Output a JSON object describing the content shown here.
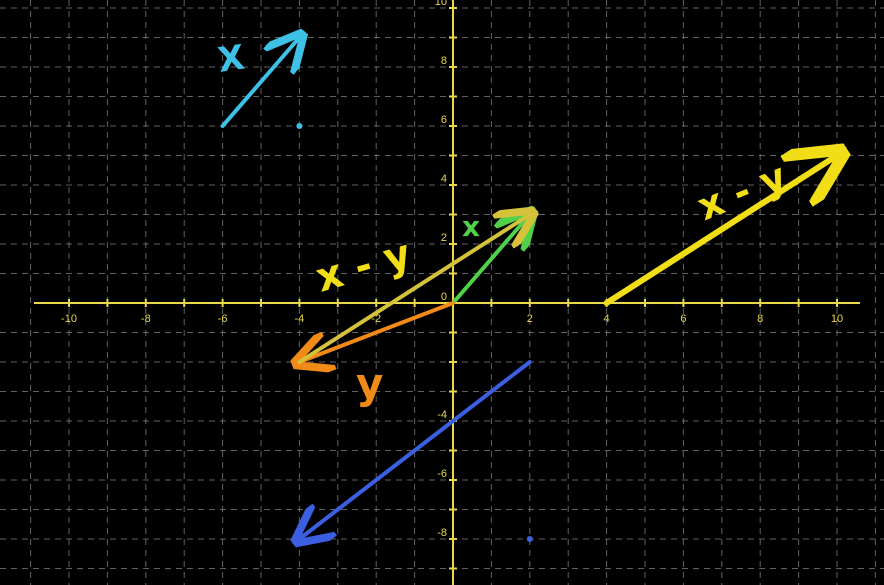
{
  "canvas": {
    "background": "#000000"
  },
  "grid": {
    "x_range": [
      -10,
      10
    ],
    "y_range": [
      -8,
      10
    ],
    "step": 1,
    "dashed": true,
    "grid_color": "#8a8a8a",
    "axis_color": "#e8d84a"
  },
  "x_tick_labels": [
    "-10",
    "-8",
    "-6",
    "-4",
    "-2",
    "2",
    "4",
    "6",
    "8",
    "10"
  ],
  "y_tick_labels": [
    "10",
    "8",
    "6",
    "4",
    "2",
    "0",
    "-4",
    "-6",
    "-8"
  ],
  "annotations": [
    {
      "name": "x-label-top",
      "text": "X",
      "color": "#3ec1e6"
    },
    {
      "name": "x-label-green",
      "text": "x",
      "color": "#4fd14a"
    },
    {
      "name": "x-minus-y-label-left",
      "text": "x - y",
      "color": "#f2de17"
    },
    {
      "name": "x-minus-y-label-right",
      "text": "x - y",
      "color": "#f2de17"
    },
    {
      "name": "y-label",
      "text": "y",
      "color": "#f28a17"
    }
  ],
  "vectors": [
    {
      "name": "vector-x-translated",
      "from": [
        -6,
        6
      ],
      "to": [
        -4,
        9
      ],
      "color": "#3ec1e6"
    },
    {
      "name": "vector-x",
      "from": [
        0,
        0
      ],
      "to": [
        2,
        3
      ],
      "color": "#4fd14a"
    },
    {
      "name": "vector-y",
      "from": [
        0,
        0
      ],
      "to": [
        -4,
        -2
      ],
      "color": "#f28a17"
    },
    {
      "name": "vector-x-minus-y-drawn-from-y",
      "from": [
        -4,
        -2
      ],
      "to": [
        2,
        3
      ],
      "color": "#d4c23a"
    },
    {
      "name": "vector-x-minus-y",
      "from": [
        4,
        0
      ],
      "to": [
        10,
        5
      ],
      "color": "#f2de17"
    },
    {
      "name": "vector-y-minus-x",
      "from": [
        2,
        -2
      ],
      "to": [
        -4,
        -8
      ],
      "color": "#3b5fe0"
    }
  ],
  "points": [
    {
      "name": "cyan-dot",
      "at": [
        -4,
        6
      ],
      "color": "#3ec1e6"
    },
    {
      "name": "blue-dot",
      "at": [
        2,
        -8
      ],
      "color": "#3b5fe0"
    }
  ]
}
